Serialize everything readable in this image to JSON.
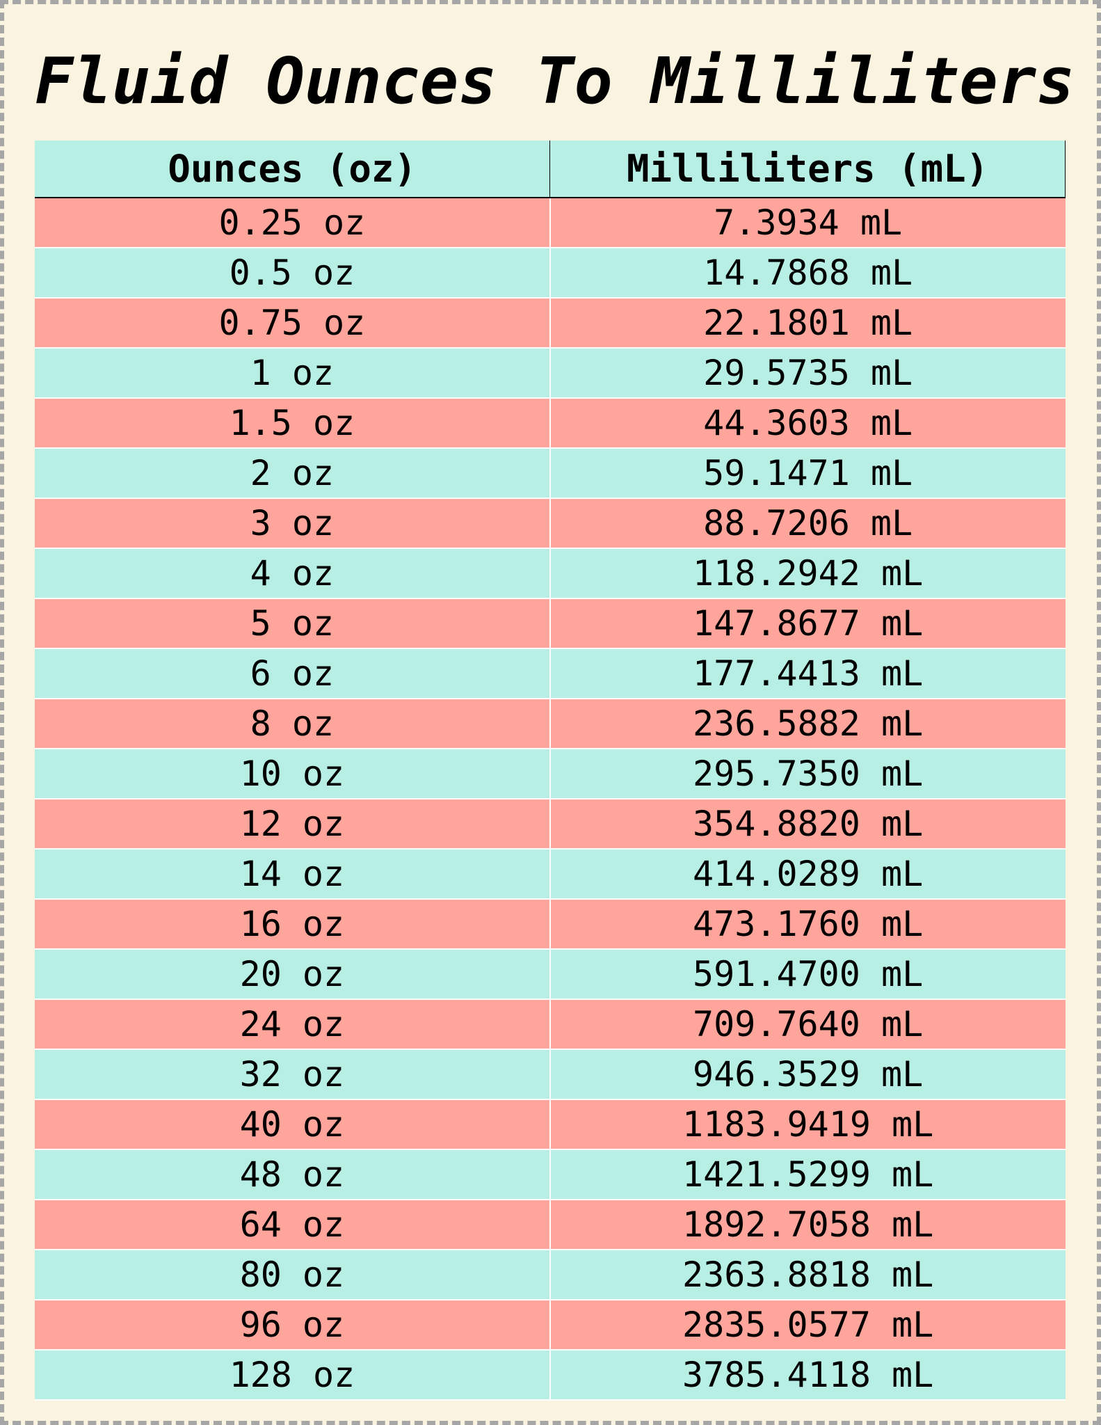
{
  "title": "Fluid Ounces To Milliliters",
  "colors": {
    "background": "#faf3e0",
    "header": "#b7efe5",
    "row_salmon": "#ffa59c",
    "row_teal": "#b7efe5",
    "border_dash": "#a6a6a6"
  },
  "table": {
    "headers": [
      "Ounces (oz)",
      "Milliliters (mL)"
    ],
    "rows": [
      [
        "0.25 oz",
        "7.3934 mL"
      ],
      [
        "0.5 oz",
        "14.7868 mL"
      ],
      [
        "0.75 oz",
        "22.1801 mL"
      ],
      [
        "1 oz",
        "29.5735 mL"
      ],
      [
        "1.5 oz",
        "44.3603 mL"
      ],
      [
        "2 oz",
        "59.1471 mL"
      ],
      [
        "3 oz",
        "88.7206 mL"
      ],
      [
        "4 oz",
        "118.2942 mL"
      ],
      [
        "5 oz",
        "147.8677 mL"
      ],
      [
        "6 oz",
        "177.4413 mL"
      ],
      [
        "8 oz",
        "236.5882 mL"
      ],
      [
        "10 oz",
        "295.7350 mL"
      ],
      [
        "12 oz",
        "354.8820 mL"
      ],
      [
        "14 oz",
        "414.0289 mL"
      ],
      [
        "16 oz",
        "473.1760 mL"
      ],
      [
        "20 oz",
        "591.4700 mL"
      ],
      [
        "24 oz",
        "709.7640 mL"
      ],
      [
        "32 oz",
        "946.3529 mL"
      ],
      [
        "40 oz",
        "1183.9419 mL"
      ],
      [
        "48 oz",
        "1421.5299 mL"
      ],
      [
        "64 oz",
        "1892.7058 mL"
      ],
      [
        "80 oz",
        "2363.8818 mL"
      ],
      [
        "96 oz",
        "2835.0577 mL"
      ],
      [
        "128 oz",
        "3785.4118 mL"
      ]
    ]
  }
}
